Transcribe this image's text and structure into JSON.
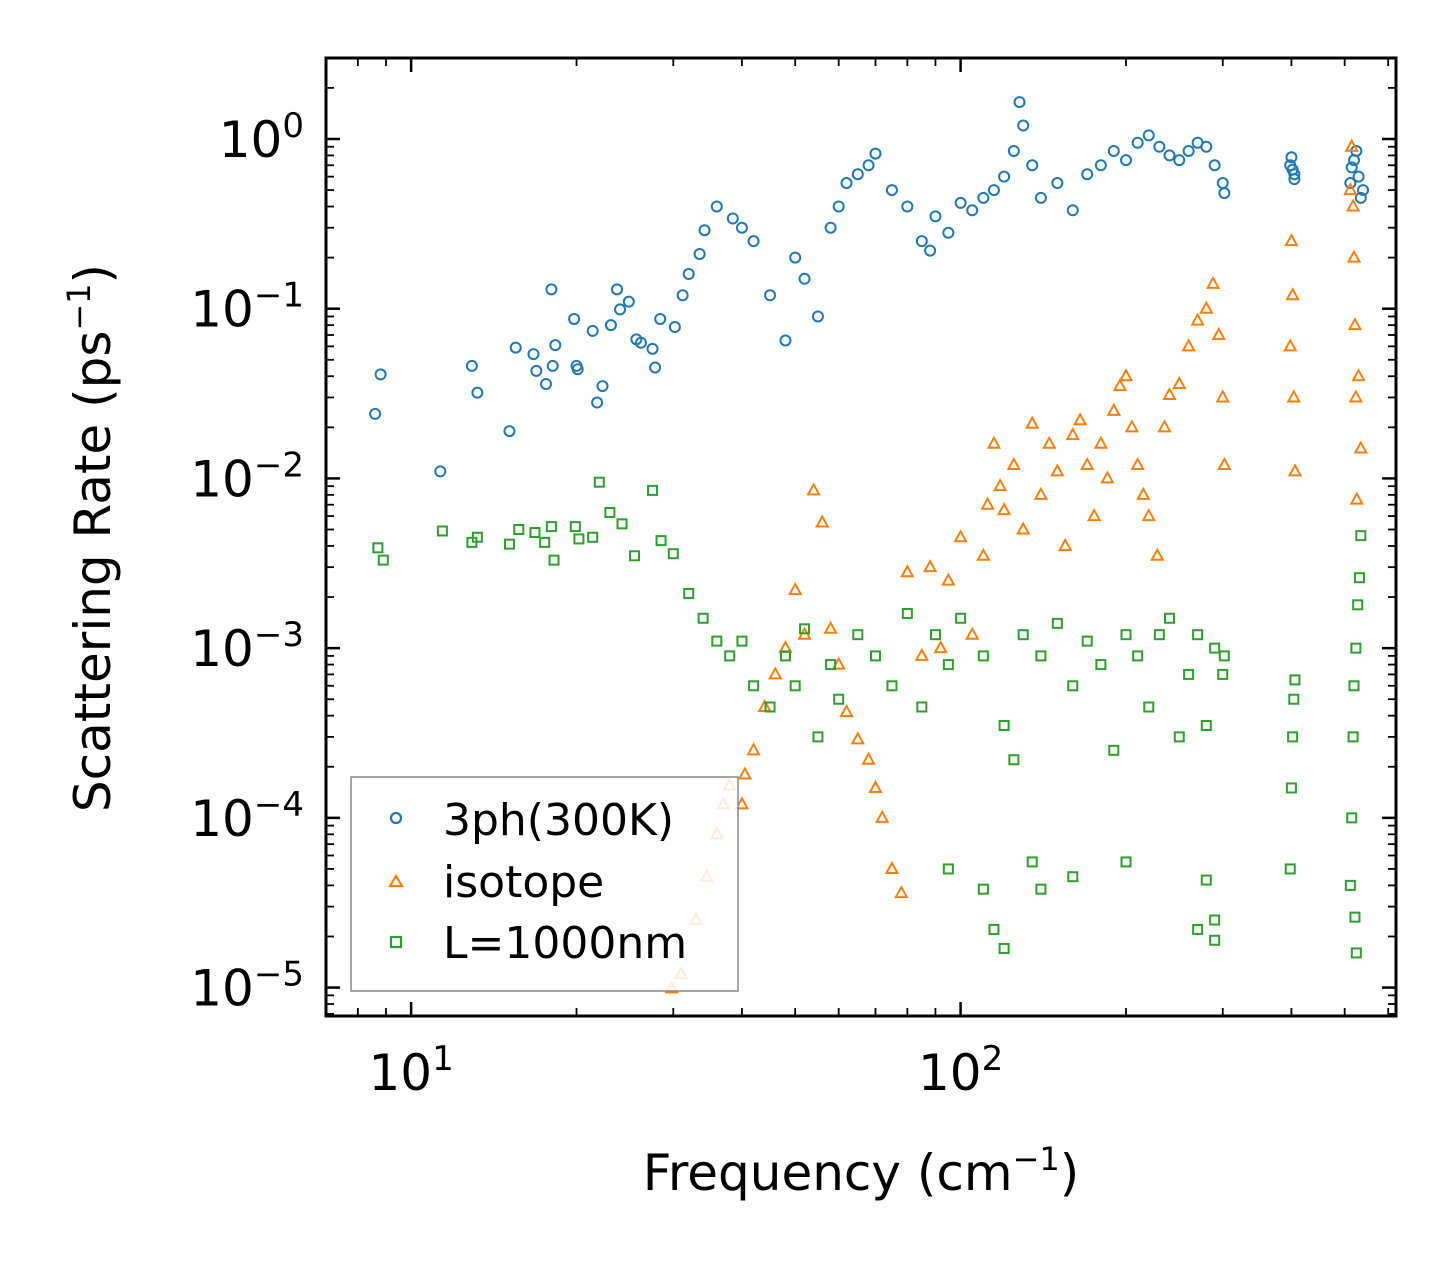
{
  "chart_data": {
    "type": "scatter",
    "x_scale": "log",
    "y_scale": "log",
    "xlim": [
      7,
      620
    ],
    "ylim": [
      6.8e-06,
      3.0
    ],
    "xlabel": {
      "text": "Frequency (cm",
      "sup": "−1",
      "close": ")"
    },
    "ylabel": {
      "text": "Scattering Rate (ps",
      "sup": "−1",
      "close": ")"
    },
    "x_ticks": [
      {
        "base": "10",
        "exp": "1",
        "value": 10
      },
      {
        "base": "10",
        "exp": "2",
        "value": 100
      }
    ],
    "y_ticks": [
      {
        "base": "10",
        "exp": "0",
        "value": 1
      },
      {
        "base": "10",
        "exp": "−1",
        "value": 0.1
      },
      {
        "base": "10",
        "exp": "−2",
        "value": 0.01
      },
      {
        "base": "10",
        "exp": "−3",
        "value": 0.001
      },
      {
        "base": "10",
        "exp": "−4",
        "value": 0.0001
      },
      {
        "base": "10",
        "exp": "−5",
        "value": 1e-05
      }
    ],
    "legend_position": "lower-left",
    "series": [
      {
        "name": "3ph(300K)",
        "marker": "circle",
        "color": "#1f77b4",
        "points": [
          [
            8.6,
            0.024
          ],
          [
            8.8,
            0.041
          ],
          [
            11.3,
            0.011
          ],
          [
            12.9,
            0.046
          ],
          [
            13.2,
            0.032
          ],
          [
            15.1,
            0.019
          ],
          [
            15.5,
            0.059
          ],
          [
            16.7,
            0.054
          ],
          [
            16.9,
            0.043
          ],
          [
            17.6,
            0.036
          ],
          [
            18.0,
            0.13
          ],
          [
            18.1,
            0.046
          ],
          [
            18.3,
            0.061
          ],
          [
            19.8,
            0.087
          ],
          [
            20.0,
            0.046
          ],
          [
            20.1,
            0.044
          ],
          [
            21.4,
            0.074
          ],
          [
            21.8,
            0.028
          ],
          [
            22.3,
            0.035
          ],
          [
            23.1,
            0.08
          ],
          [
            23.7,
            0.13
          ],
          [
            24.0,
            0.099
          ],
          [
            24.9,
            0.11
          ],
          [
            25.7,
            0.066
          ],
          [
            26.2,
            0.063
          ],
          [
            27.5,
            0.058
          ],
          [
            27.8,
            0.045
          ],
          [
            28.4,
            0.087
          ],
          [
            30.2,
            0.078
          ],
          [
            31.2,
            0.12
          ],
          [
            32.0,
            0.16
          ],
          [
            33.5,
            0.21
          ],
          [
            34.2,
            0.29
          ],
          [
            36.0,
            0.4
          ],
          [
            38.5,
            0.34
          ],
          [
            40.0,
            0.3
          ],
          [
            42.0,
            0.25
          ],
          [
            45.0,
            0.12
          ],
          [
            48.0,
            0.065
          ],
          [
            50.0,
            0.2
          ],
          [
            52.0,
            0.15
          ],
          [
            55.0,
            0.09
          ],
          [
            58.0,
            0.3
          ],
          [
            60.0,
            0.4
          ],
          [
            62.0,
            0.55
          ],
          [
            65.0,
            0.62
          ],
          [
            68.0,
            0.7
          ],
          [
            70.0,
            0.82
          ],
          [
            75.0,
            0.5
          ],
          [
            80.0,
            0.4
          ],
          [
            85.0,
            0.25
          ],
          [
            88.0,
            0.22
          ],
          [
            90.0,
            0.35
          ],
          [
            95.0,
            0.28
          ],
          [
            100.0,
            0.42
          ],
          [
            105.0,
            0.38
          ],
          [
            110.0,
            0.45
          ],
          [
            115.0,
            0.5
          ],
          [
            120.0,
            0.6
          ],
          [
            125.0,
            0.85
          ],
          [
            128.0,
            1.65
          ],
          [
            130.0,
            1.2
          ],
          [
            135.0,
            0.7
          ],
          [
            140.0,
            0.45
          ],
          [
            150.0,
            0.55
          ],
          [
            160.0,
            0.38
          ],
          [
            170.0,
            0.62
          ],
          [
            180.0,
            0.7
          ],
          [
            190.0,
            0.85
          ],
          [
            200.0,
            0.75
          ],
          [
            210.0,
            0.95
          ],
          [
            220.0,
            1.05
          ],
          [
            230.0,
            0.9
          ],
          [
            240.0,
            0.8
          ],
          [
            250.0,
            0.75
          ],
          [
            260.0,
            0.85
          ],
          [
            270.0,
            0.95
          ],
          [
            280.0,
            0.9
          ],
          [
            290.0,
            0.7
          ],
          [
            300.0,
            0.55
          ],
          [
            302.0,
            0.48
          ],
          [
            398.0,
            0.7
          ],
          [
            400.0,
            0.78
          ],
          [
            402.0,
            0.66
          ],
          [
            405.0,
            0.62
          ],
          [
            405.0,
            0.58
          ],
          [
            512.0,
            0.55
          ],
          [
            515.0,
            0.68
          ],
          [
            520.0,
            0.75
          ],
          [
            525.0,
            0.85
          ],
          [
            530.0,
            0.6
          ],
          [
            535.0,
            0.45
          ],
          [
            540.0,
            0.5
          ]
        ]
      },
      {
        "name": "isotope",
        "marker": "triangle",
        "color": "#ff7f0e",
        "points": [
          [
            29.8,
            9.9e-06
          ],
          [
            31.0,
            1.2e-05
          ],
          [
            33.0,
            2.5e-05
          ],
          [
            34.5,
            4.5e-05
          ],
          [
            36.0,
            8e-05
          ],
          [
            37.0,
            0.00012
          ],
          [
            38.0,
            0.000155
          ],
          [
            40.0,
            0.00012
          ],
          [
            40.5,
            0.00018
          ],
          [
            42.0,
            0.00025
          ],
          [
            44.0,
            0.00045
          ],
          [
            46.0,
            0.0007
          ],
          [
            48.0,
            0.001
          ],
          [
            50.0,
            0.0022
          ],
          [
            52.0,
            0.0012
          ],
          [
            54.0,
            0.0085
          ],
          [
            56.0,
            0.0055
          ],
          [
            58.0,
            0.0013
          ],
          [
            60.0,
            0.0008
          ],
          [
            62.0,
            0.00042
          ],
          [
            65.0,
            0.00029
          ],
          [
            68.0,
            0.00022
          ],
          [
            70.0,
            0.00015
          ],
          [
            72.0,
            0.0001
          ],
          [
            75.0,
            5e-05
          ],
          [
            78.0,
            3.6e-05
          ],
          [
            80.0,
            0.0028
          ],
          [
            85.0,
            0.0009
          ],
          [
            88.0,
            0.003
          ],
          [
            92.0,
            0.001
          ],
          [
            95.0,
            0.0025
          ],
          [
            100.0,
            0.0045
          ],
          [
            105.0,
            0.0012
          ],
          [
            110.0,
            0.0035
          ],
          [
            112.0,
            0.007
          ],
          [
            115.0,
            0.016
          ],
          [
            118.0,
            0.009
          ],
          [
            120.0,
            0.0065
          ],
          [
            125.0,
            0.012
          ],
          [
            130.0,
            0.005
          ],
          [
            135.0,
            0.021
          ],
          [
            140.0,
            0.008
          ],
          [
            145.0,
            0.016
          ],
          [
            150.0,
            0.011
          ],
          [
            155.0,
            0.004
          ],
          [
            160.0,
            0.018
          ],
          [
            165.0,
            0.022
          ],
          [
            170.0,
            0.012
          ],
          [
            175.0,
            0.006
          ],
          [
            180.0,
            0.016
          ],
          [
            185.0,
            0.01
          ],
          [
            190.0,
            0.025
          ],
          [
            195.0,
            0.035
          ],
          [
            200.0,
            0.04
          ],
          [
            205.0,
            0.02
          ],
          [
            210.0,
            0.012
          ],
          [
            215.0,
            0.008
          ],
          [
            220.0,
            0.006
          ],
          [
            228.0,
            0.0035
          ],
          [
            235.0,
            0.02
          ],
          [
            240.0,
            0.031
          ],
          [
            250.0,
            0.036
          ],
          [
            260.0,
            0.06
          ],
          [
            270.0,
            0.085
          ],
          [
            280.0,
            0.1
          ],
          [
            288.0,
            0.14
          ],
          [
            295.0,
            0.07
          ],
          [
            300.0,
            0.03
          ],
          [
            302.0,
            0.012
          ],
          [
            398.0,
            0.06
          ],
          [
            400.0,
            0.25
          ],
          [
            402.0,
            0.12
          ],
          [
            404.0,
            0.03
          ],
          [
            406.0,
            0.011
          ],
          [
            512.0,
            0.5
          ],
          [
            515.0,
            0.9
          ],
          [
            518.0,
            0.4
          ],
          [
            520.0,
            0.2
          ],
          [
            522.0,
            0.08
          ],
          [
            524.0,
            0.03
          ],
          [
            526.0,
            0.0075
          ],
          [
            530.0,
            0.04
          ],
          [
            535.0,
            0.015
          ]
        ]
      },
      {
        "name": "L=1000nm",
        "marker": "square",
        "color": "#2ca02c",
        "points": [
          [
            8.7,
            0.0039
          ],
          [
            8.9,
            0.0033
          ],
          [
            11.4,
            0.0049
          ],
          [
            12.9,
            0.0042
          ],
          [
            13.2,
            0.0045
          ],
          [
            15.1,
            0.0041
          ],
          [
            15.7,
            0.005
          ],
          [
            16.8,
            0.0048
          ],
          [
            17.5,
            0.0042
          ],
          [
            18.0,
            0.0052
          ],
          [
            18.2,
            0.0033
          ],
          [
            19.9,
            0.0052
          ],
          [
            20.2,
            0.0044
          ],
          [
            21.4,
            0.0045
          ],
          [
            22.0,
            0.0095
          ],
          [
            23.0,
            0.0063
          ],
          [
            24.2,
            0.0054
          ],
          [
            25.5,
            0.0035
          ],
          [
            27.5,
            0.0085
          ],
          [
            28.5,
            0.0043
          ],
          [
            30.0,
            0.0036
          ],
          [
            32.0,
            0.0021
          ],
          [
            34.0,
            0.0015
          ],
          [
            36.0,
            0.0011
          ],
          [
            38.0,
            0.0009
          ],
          [
            40.0,
            0.0011
          ],
          [
            42.0,
            0.0006
          ],
          [
            45.0,
            0.00045
          ],
          [
            48.0,
            0.0009
          ],
          [
            50.0,
            0.0006
          ],
          [
            52.0,
            0.0013
          ],
          [
            55.0,
            0.0003
          ],
          [
            58.0,
            0.0008
          ],
          [
            60.0,
            0.0005
          ],
          [
            65.0,
            0.0012
          ],
          [
            70.0,
            0.0009
          ],
          [
            75.0,
            0.0006
          ],
          [
            80.0,
            0.0016
          ],
          [
            85.0,
            0.00045
          ],
          [
            90.0,
            0.0012
          ],
          [
            95.0,
            0.0008
          ],
          [
            100.0,
            0.0015
          ],
          [
            110.0,
            0.0009
          ],
          [
            120.0,
            0.00035
          ],
          [
            125.0,
            0.00022
          ],
          [
            130.0,
            0.0012
          ],
          [
            140.0,
            0.0009
          ],
          [
            150.0,
            0.0014
          ],
          [
            160.0,
            0.0006
          ],
          [
            170.0,
            0.0011
          ],
          [
            180.0,
            0.0008
          ],
          [
            190.0,
            0.00025
          ],
          [
            200.0,
            0.0012
          ],
          [
            210.0,
            0.0009
          ],
          [
            220.0,
            0.00045
          ],
          [
            230.0,
            0.0012
          ],
          [
            240.0,
            0.0015
          ],
          [
            250.0,
            0.0003
          ],
          [
            260.0,
            0.0007
          ],
          [
            270.0,
            0.0012
          ],
          [
            280.0,
            0.00035
          ],
          [
            290.0,
            0.001
          ],
          [
            300.0,
            0.0007
          ],
          [
            302.0,
            0.0009
          ],
          [
            95.0,
            5e-05
          ],
          [
            110.0,
            3.8e-05
          ],
          [
            115.0,
            2.2e-05
          ],
          [
            120.0,
            1.7e-05
          ],
          [
            135.0,
            5.5e-05
          ],
          [
            140.0,
            3.8e-05
          ],
          [
            160.0,
            4.5e-05
          ],
          [
            200.0,
            5.5e-05
          ],
          [
            270.0,
            2.2e-05
          ],
          [
            280.0,
            4.3e-05
          ],
          [
            290.0,
            2.5e-05
          ],
          [
            290.0,
            1.9e-05
          ],
          [
            398.0,
            5e-05
          ],
          [
            400.0,
            0.00015
          ],
          [
            402.0,
            0.0003
          ],
          [
            404.0,
            0.0005
          ],
          [
            406.0,
            0.00065
          ],
          [
            512.0,
            4e-05
          ],
          [
            515.0,
            0.0001
          ],
          [
            518.0,
            0.0003
          ],
          [
            520.0,
            0.0006
          ],
          [
            524.0,
            0.001
          ],
          [
            528.0,
            0.0018
          ],
          [
            532.0,
            0.0026
          ],
          [
            535.0,
            0.0046
          ],
          [
            522.0,
            2.6e-05
          ],
          [
            525.0,
            1.6e-05
          ]
        ]
      }
    ]
  }
}
